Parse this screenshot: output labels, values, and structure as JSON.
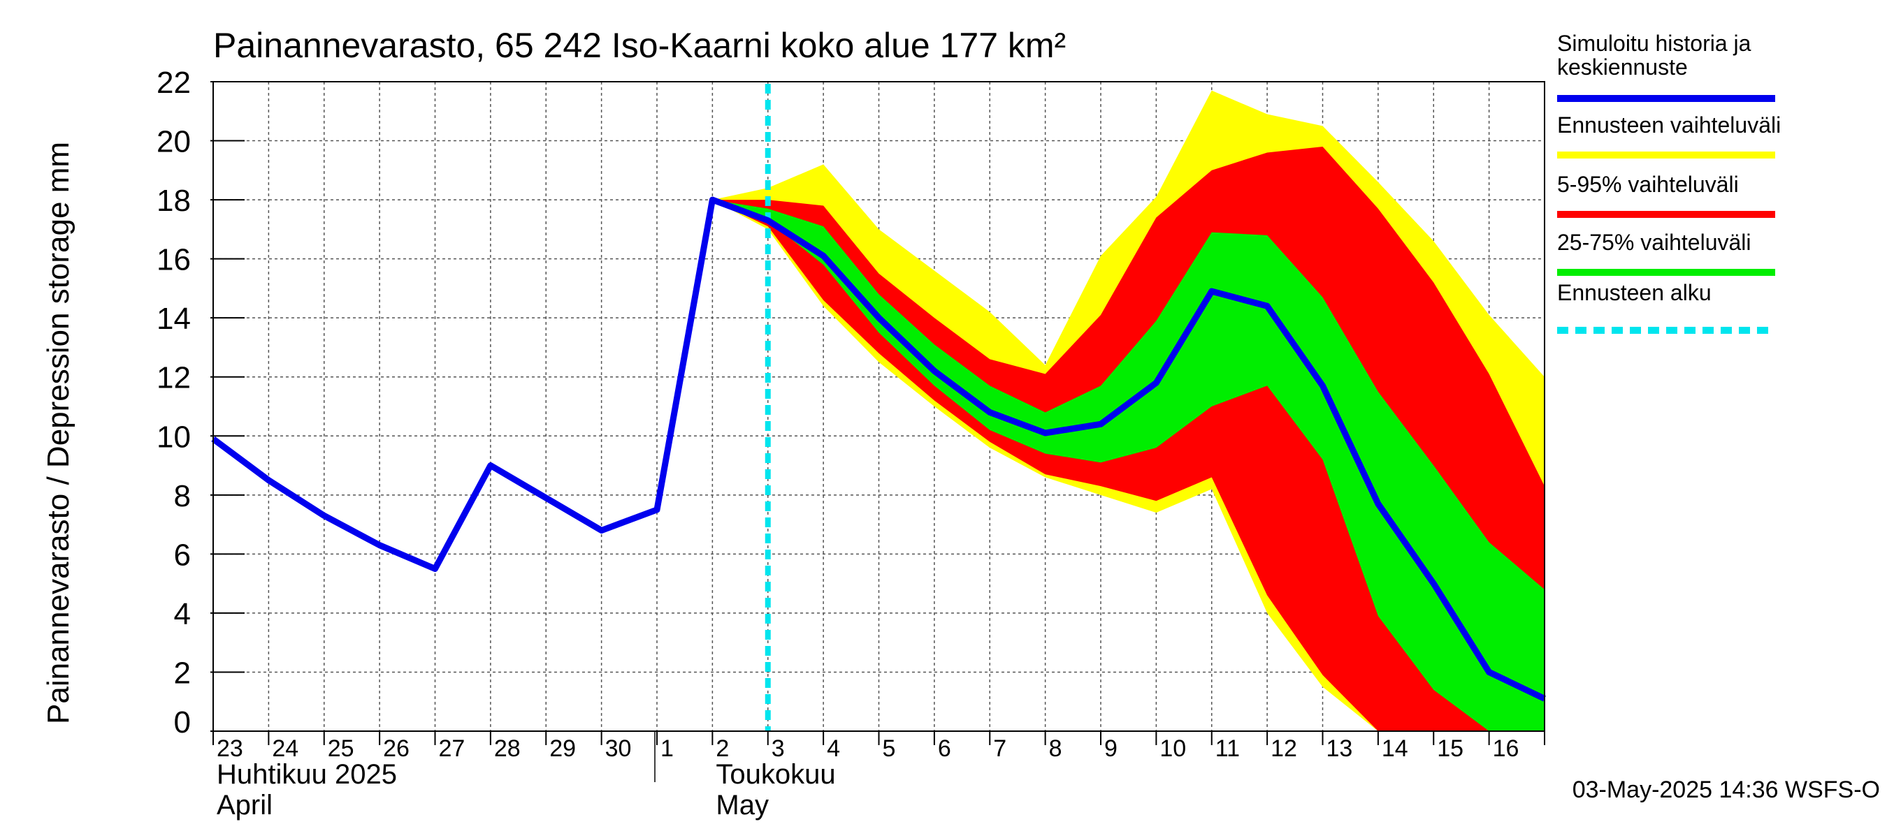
{
  "chart_data": {
    "type": "line",
    "title": "Painannevarasto, 65 242 Iso-Kaarni koko alue 177 km²",
    "ylabel": "Painannevarasto / Depression storage    mm",
    "ylim": [
      0,
      22
    ],
    "yticks": [
      0,
      2,
      4,
      6,
      8,
      10,
      12,
      14,
      16,
      18,
      20,
      22
    ],
    "xlim": [
      0,
      24
    ],
    "day_labels": [
      "23",
      "24",
      "25",
      "26",
      "27",
      "28",
      "29",
      "30",
      "1",
      "2",
      "3",
      "4",
      "5",
      "6",
      "7",
      "8",
      "9",
      "10",
      "11",
      "12",
      "13",
      "14",
      "15",
      "16"
    ],
    "month_labels": [
      {
        "fi": "Huhtikuu  2025",
        "en": "April",
        "day_index": 0
      },
      {
        "fi": "Toukokuu",
        "en": "May",
        "day_index": 9
      }
    ],
    "forecast_start": 10.0,
    "timestamp": "03-May-2025 14:36 WSFS-O",
    "legend": [
      {
        "label": "Simuloitu historia ja keskiennuste",
        "color": "#0000ee",
        "style": "solid"
      },
      {
        "label": "Ennusteen vaihteluväli",
        "color": "#ffff00",
        "style": "solid"
      },
      {
        "label": "5-95% vaihteluväli",
        "color": "#ff0000",
        "style": "solid"
      },
      {
        "label": "25-75% vaihteluväli",
        "color": "#00ee00",
        "style": "solid"
      },
      {
        "label": "Ennusteen alku",
        "color": "#00e5ee",
        "style": "dashed"
      }
    ],
    "bands": {
      "x": [
        9,
        10,
        11,
        12,
        13,
        14,
        15,
        16,
        17,
        18,
        19,
        20,
        21,
        22,
        23,
        24
      ],
      "range": {
        "upper": [
          18.0,
          18.4,
          19.2,
          17.0,
          15.6,
          14.2,
          12.4,
          16.1,
          18.1,
          21.7,
          20.9,
          20.5,
          18.6,
          16.6,
          14.1,
          12.0
        ],
        "lower": [
          18.0,
          17.0,
          14.4,
          12.5,
          11.0,
          9.6,
          8.6,
          8.0,
          7.4,
          8.2,
          4.0,
          1.5,
          0.0,
          0.0,
          0.0,
          0.0
        ]
      },
      "p5_95": {
        "upper": [
          18.0,
          18.0,
          17.8,
          15.5,
          14.0,
          12.6,
          12.1,
          14.1,
          17.4,
          19.0,
          19.6,
          19.8,
          17.7,
          15.2,
          12.1,
          8.3
        ],
        "lower": [
          18.0,
          17.1,
          14.6,
          12.8,
          11.2,
          9.8,
          8.7,
          8.3,
          7.8,
          8.6,
          4.6,
          1.9,
          0.0,
          0.0,
          0.0,
          0.0
        ]
      },
      "p25_75": {
        "upper": [
          18.0,
          17.7,
          17.1,
          14.8,
          13.1,
          11.7,
          10.8,
          11.7,
          13.9,
          16.9,
          16.8,
          14.7,
          11.5,
          9.0,
          6.4,
          4.8
        ],
        "lower": [
          18.0,
          17.3,
          15.8,
          13.5,
          11.7,
          10.2,
          9.4,
          9.1,
          9.6,
          11.0,
          11.7,
          9.2,
          3.9,
          1.4,
          0.0,
          0.0
        ]
      }
    },
    "series": [
      {
        "name": "Simuloitu historia ja keskiennuste",
        "color": "#0000ee",
        "x": [
          0,
          1,
          2,
          3,
          4,
          5,
          6,
          7,
          8,
          9,
          10,
          11,
          12,
          13,
          14,
          15,
          16,
          17,
          18,
          19,
          20,
          21,
          22,
          23,
          24
        ],
        "values": [
          9.9,
          8.5,
          7.3,
          6.3,
          5.5,
          9.0,
          7.9,
          6.8,
          7.5,
          18.0,
          17.3,
          16.1,
          14.0,
          12.2,
          10.8,
          10.1,
          10.4,
          11.8,
          14.9,
          14.4,
          11.7,
          7.7,
          5.0,
          2.0,
          1.1
        ]
      }
    ]
  }
}
